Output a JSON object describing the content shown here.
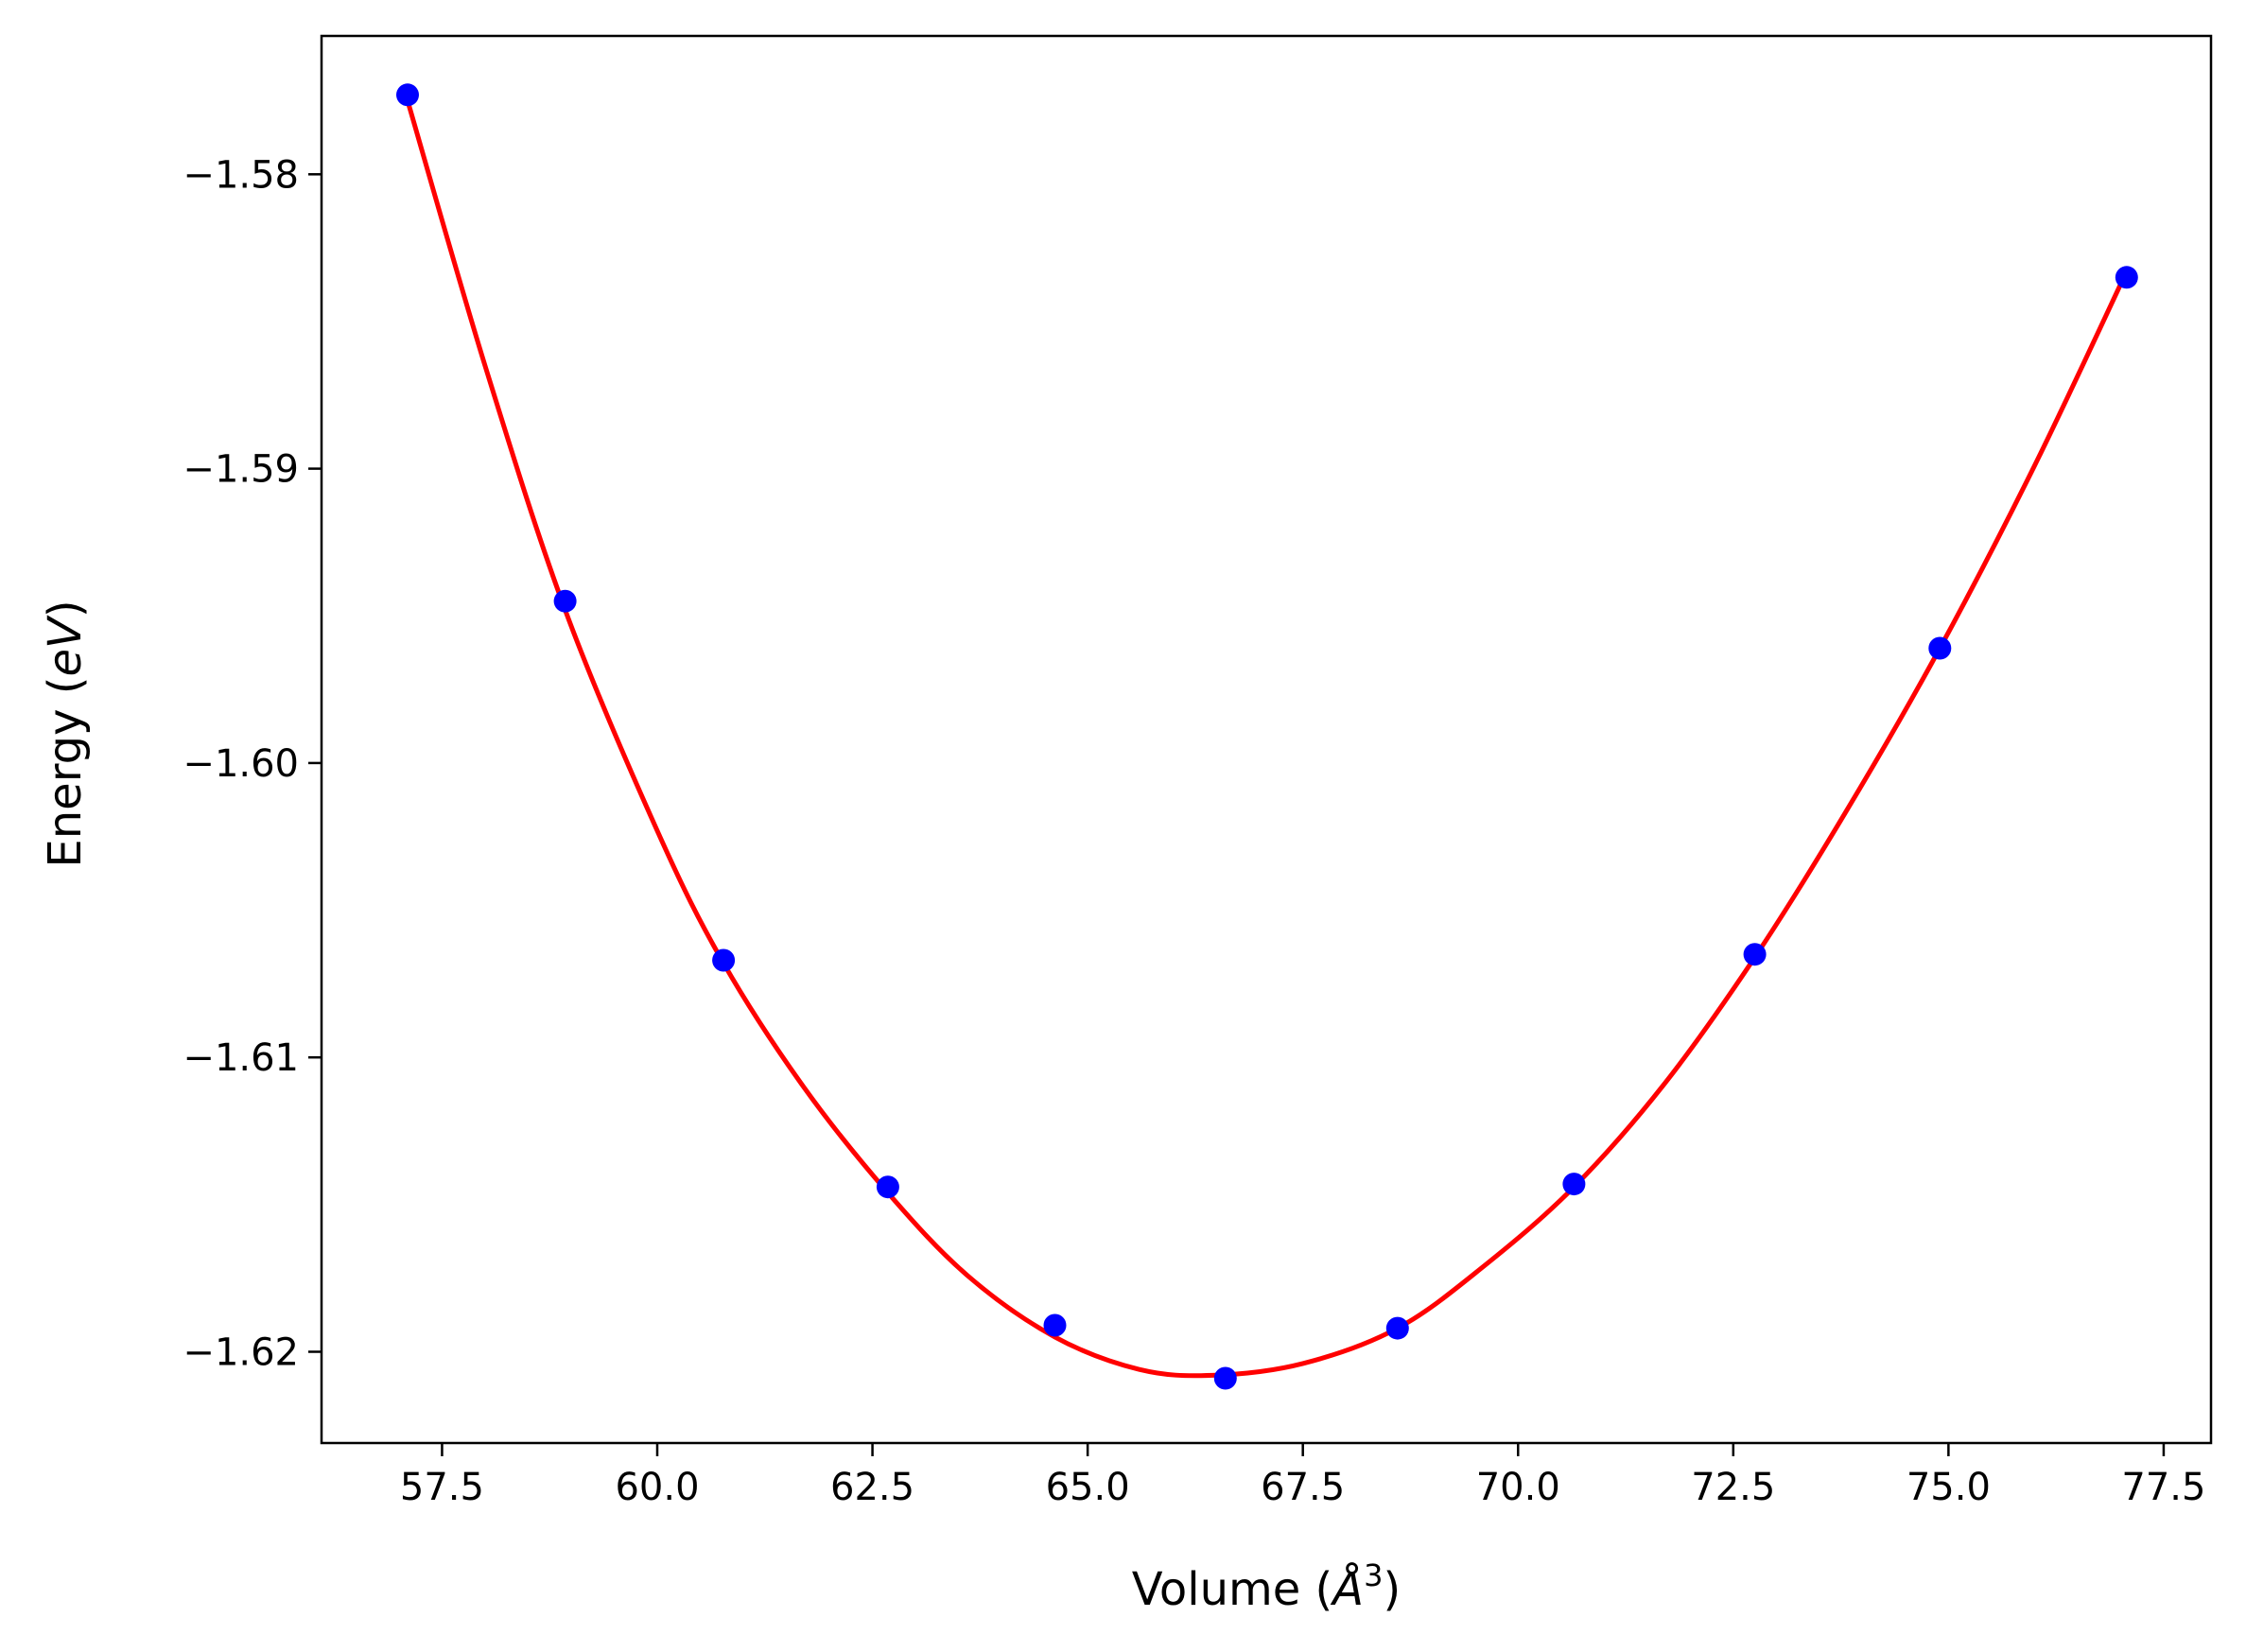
{
  "chart_data": {
    "type": "scatter",
    "xlabel": "Volume (Å³)",
    "xlabel_main": "Volume (",
    "xlabel_unit": "Å",
    "xlabel_sup": "3",
    "xlabel_close": ")",
    "ylabel": "Energy (eV)",
    "ylabel_main": "Energy (",
    "ylabel_unit": "eV",
    "ylabel_close": ")",
    "xlim": [
      56.1,
      78.05
    ],
    "ylim": [
      -1.6231,
      -1.5753
    ],
    "x_ticks": [
      57.5,
      60.0,
      62.5,
      65.0,
      67.5,
      70.0,
      72.5,
      75.0,
      77.5
    ],
    "x_tick_labels": [
      "57.5",
      "60.0",
      "62.5",
      "65.0",
      "67.5",
      "70.0",
      "72.5",
      "75.0",
      "77.5"
    ],
    "y_ticks": [
      -1.58,
      -1.59,
      -1.6,
      -1.61,
      -1.62
    ],
    "y_tick_labels": [
      "−1.58",
      "−1.59",
      "−1.60",
      "−1.61",
      "−1.62"
    ],
    "grid": false,
    "series": [
      {
        "kind": "points",
        "color": "#0000ff",
        "x": [
          57.1,
          58.93,
          60.77,
          62.68,
          64.62,
          66.6,
          68.6,
          70.65,
          72.75,
          74.9,
          77.07
        ],
        "y": [
          -1.5773,
          -1.5945,
          -1.6067,
          -1.6144,
          -1.6191,
          -1.6209,
          -1.6192,
          -1.6143,
          -1.6065,
          -1.5961,
          -1.5835
        ]
      },
      {
        "kind": "fit-curve",
        "color": "#ff0000",
        "x": [
          57.1,
          58.0,
          58.93,
          60.0,
          60.77,
          61.7,
          62.68,
          63.6,
          64.62,
          65.6,
          66.45,
          67.5,
          68.6,
          69.6,
          70.65,
          71.7,
          72.75,
          73.8,
          74.9,
          76.0,
          77.07
        ],
        "y": [
          -1.5775,
          -1.5865,
          -1.5948,
          -1.6023,
          -1.6068,
          -1.611,
          -1.6146,
          -1.6174,
          -1.6195,
          -1.6206,
          -1.6208,
          -1.6204,
          -1.6192,
          -1.6171,
          -1.6144,
          -1.6109,
          -1.6066,
          -1.6017,
          -1.5961,
          -1.5899,
          -1.5833
        ]
      }
    ]
  }
}
